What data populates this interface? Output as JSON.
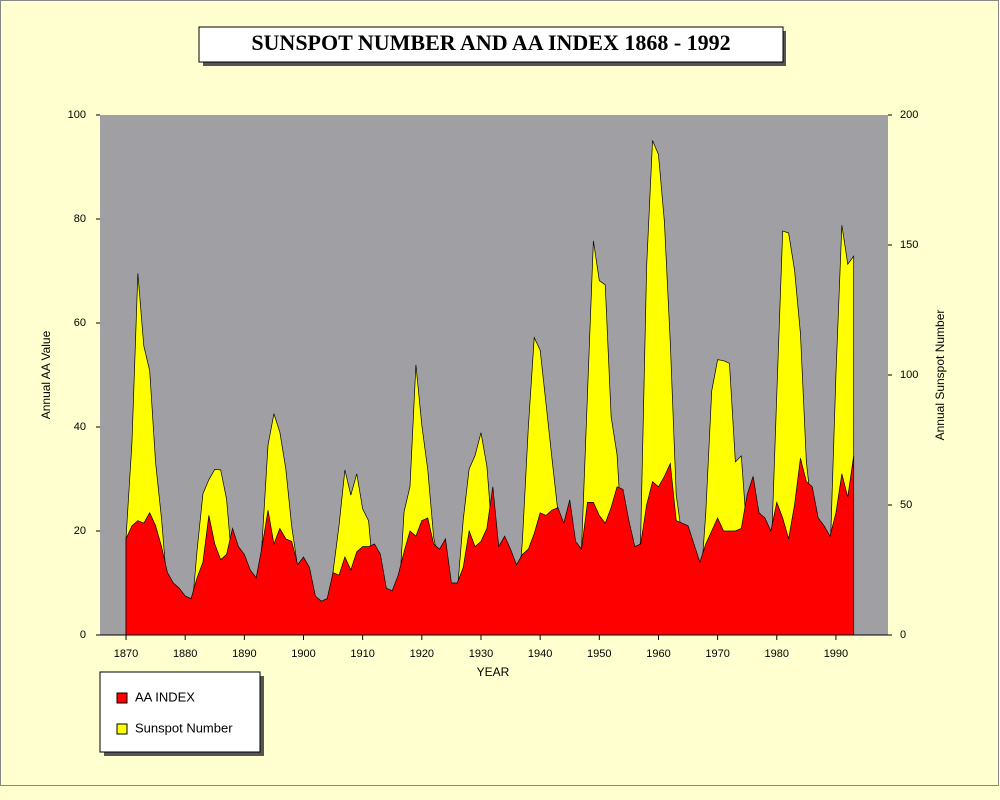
{
  "chart_data": {
    "type": "area",
    "title": "SUNSPOT NUMBER AND AA INDEX 1868 - 1992",
    "xlabel": "YEAR",
    "ylabel": "Annual AA Value",
    "y2label": "Annual Sunspot Number",
    "x": [
      1870,
      1871,
      1872,
      1873,
      1874,
      1875,
      1876,
      1877,
      1878,
      1879,
      1880,
      1881,
      1882,
      1883,
      1884,
      1885,
      1886,
      1887,
      1888,
      1889,
      1890,
      1891,
      1892,
      1893,
      1894,
      1895,
      1896,
      1897,
      1898,
      1899,
      1900,
      1901,
      1902,
      1903,
      1904,
      1905,
      1906,
      1907,
      1908,
      1909,
      1910,
      1911,
      1912,
      1913,
      1914,
      1915,
      1916,
      1917,
      1918,
      1919,
      1920,
      1921,
      1922,
      1923,
      1924,
      1925,
      1926,
      1927,
      1928,
      1929,
      1930,
      1931,
      1932,
      1933,
      1934,
      1935,
      1936,
      1937,
      1938,
      1939,
      1940,
      1941,
      1942,
      1943,
      1944,
      1945,
      1946,
      1947,
      1948,
      1949,
      1950,
      1951,
      1952,
      1953,
      1954,
      1955,
      1956,
      1957,
      1958,
      1959,
      1960,
      1961,
      1962,
      1963,
      1964,
      1965,
      1966,
      1967,
      1968,
      1969,
      1970,
      1971,
      1972,
      1973,
      1974,
      1975,
      1976,
      1977,
      1978,
      1979,
      1980,
      1981,
      1982,
      1983,
      1984,
      1985,
      1986,
      1987,
      1988,
      1989,
      1990,
      1991,
      1992,
      1993
    ],
    "series": [
      {
        "name": "Sunspot Number",
        "color": "#ffff00",
        "axis": "y2",
        "values": [
          37.3,
          73.9,
          139.1,
          111.2,
          101.6,
          66.2,
          44.7,
          17.0,
          11.3,
          12.4,
          3.4,
          6.0,
          32.3,
          54.3,
          59.7,
          63.7,
          63.5,
          52.2,
          25.4,
          13.1,
          6.8,
          6.3,
          7.1,
          35.6,
          73.0,
          85.1,
          78.0,
          64.0,
          41.8,
          26.2,
          26.7,
          12.1,
          9.5,
          2.7,
          5.0,
          24.4,
          42.0,
          63.5,
          53.8,
          62.0,
          48.5,
          43.9,
          18.6,
          5.7,
          3.6,
          1.4,
          9.6,
          47.4,
          57.1,
          103.9,
          80.6,
          63.6,
          37.6,
          26.1,
          14.2,
          5.8,
          16.7,
          44.3,
          63.9,
          69.0,
          77.8,
          64.9,
          35.7,
          21.2,
          11.1,
          5.7,
          8.7,
          36.1,
          79.7,
          114.4,
          109.6,
          88.8,
          67.8,
          47.5,
          30.6,
          16.3,
          9.6,
          33.2,
          92.6,
          151.6,
          136.3,
          134.7,
          83.9,
          69.4,
          31.5,
          13.9,
          4.4,
          38.0,
          141.7,
          190.2,
          184.8,
          159.0,
          112.3,
          53.9,
          37.6,
          27.9,
          10.2,
          15.1,
          47.0,
          93.8,
          105.9,
          105.5,
          104.5,
          66.6,
          68.9,
          38.0,
          34.5,
          15.5,
          12.6,
          27.5,
          92.5,
          155.4,
          154.6,
          140.4,
          115.9,
          66.6,
          45.9,
          17.9,
          13.4,
          29.4,
          100.2,
          157.6,
          142.6,
          145.7
        ]
      },
      {
        "name": "AA INDEX",
        "color": "#ff0000",
        "values": [
          18.5,
          21,
          22,
          21.5,
          23.5,
          21,
          17,
          12,
          10,
          9,
          7.5,
          7,
          11,
          14,
          23,
          17.5,
          14.5,
          15.5,
          20.5,
          17,
          15.5,
          12.5,
          11,
          17,
          24,
          17.5,
          20.5,
          18.5,
          18,
          13.5,
          15,
          13,
          7.5,
          6.5,
          7,
          12,
          11.5,
          15,
          12.5,
          16,
          17,
          17,
          17.5,
          15.5,
          9,
          8.5,
          11.5,
          16,
          20,
          19,
          22,
          22.5,
          17.5,
          16.5,
          18.5,
          10,
          10,
          13,
          20,
          17,
          18,
          20.5,
          28.5,
          17,
          19,
          16.5,
          13.5,
          15.5,
          16.5,
          19.5,
          23.5,
          23,
          24,
          24.5,
          21.5,
          26,
          18,
          16.5,
          25.5,
          25.5,
          23,
          21.5,
          24.5,
          28.5,
          28,
          22,
          17,
          17.5,
          25,
          29.5,
          28.5,
          30.5,
          33,
          22,
          21.5,
          21,
          17.5,
          14,
          17.5,
          20,
          22.5,
          20,
          20,
          20,
          20.5,
          27,
          30.5,
          23.5,
          22.5,
          20,
          25.5,
          22.5,
          18.5,
          25,
          34,
          29.5,
          28.5,
          22.5,
          21,
          19,
          23.5,
          31,
          26.5,
          34.5
        ]
      }
    ],
    "legend_order": [
      1,
      0
    ],
    "xlim": [
      1865.6,
      1998.8
    ],
    "xticks": [
      1870,
      1880,
      1890,
      1900,
      1910,
      1920,
      1930,
      1940,
      1950,
      1960,
      1970,
      1980,
      1990
    ],
    "ylim": [
      0,
      100
    ],
    "yticks": [
      0,
      20,
      40,
      60,
      80,
      100
    ],
    "y2lim": [
      0,
      200
    ],
    "y2ticks": [
      0,
      50,
      100,
      150,
      200
    ],
    "legend": "bottom-left"
  }
}
